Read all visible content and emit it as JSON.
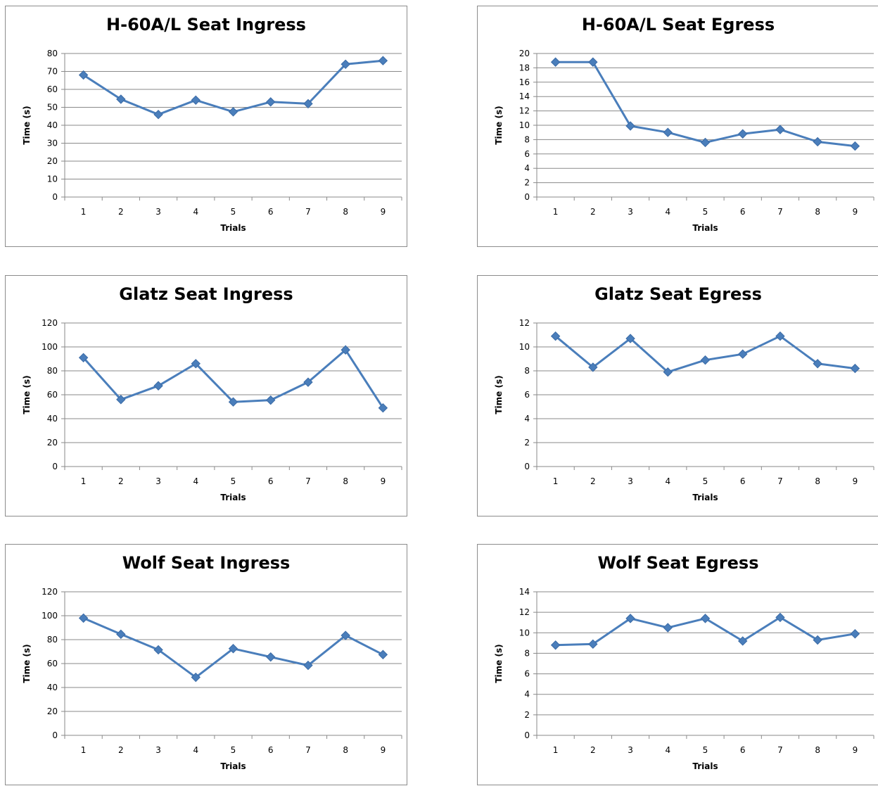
{
  "chart_data": [
    {
      "type": "line",
      "title": "H-60A/L Seat Ingress",
      "xlabel": "Trials",
      "ylabel": "Time (s)",
      "categories": [
        "1",
        "2",
        "3",
        "4",
        "5",
        "6",
        "7",
        "8",
        "9"
      ],
      "values": [
        68,
        54.5,
        46,
        54,
        47.5,
        53,
        52,
        74,
        76
      ],
      "ylim": [
        0,
        80
      ],
      "yticks": [
        0,
        10,
        20,
        30,
        40,
        50,
        60,
        70,
        80
      ],
      "color": "#4a7ebb",
      "grid": true
    },
    {
      "type": "line",
      "title": "H-60A/L Seat Egress",
      "xlabel": "Trials",
      "ylabel": "Time (s)",
      "categories": [
        "1",
        "2",
        "3",
        "4",
        "5",
        "6",
        "7",
        "8",
        "9"
      ],
      "values": [
        18.8,
        18.8,
        9.9,
        9,
        7.6,
        8.8,
        9.4,
        7.7,
        7.1
      ],
      "ylim": [
        0,
        20
      ],
      "yticks": [
        0,
        2,
        4,
        6,
        8,
        10,
        12,
        14,
        16,
        18,
        20
      ],
      "color": "#4a7ebb",
      "grid": true
    },
    {
      "type": "line",
      "title": "Glatz Seat Ingress",
      "xlabel": "Trials",
      "ylabel": "Time (s)",
      "categories": [
        "1",
        "2",
        "3",
        "4",
        "5",
        "6",
        "7",
        "8",
        "9"
      ],
      "values": [
        91,
        56,
        67.5,
        86,
        54,
        55.5,
        70.5,
        97.5,
        49
      ],
      "ylim": [
        0,
        120
      ],
      "yticks": [
        0,
        20,
        40,
        60,
        80,
        100,
        120
      ],
      "color": "#4a7ebb",
      "grid": true
    },
    {
      "type": "line",
      "title": "Glatz Seat Egress",
      "xlabel": "Trials",
      "ylabel": "Time (s)",
      "categories": [
        "1",
        "2",
        "3",
        "4",
        "5",
        "6",
        "7",
        "8",
        "9"
      ],
      "values": [
        10.9,
        8.3,
        10.7,
        7.9,
        8.9,
        9.4,
        10.9,
        8.6,
        8.2
      ],
      "ylim": [
        0,
        12
      ],
      "yticks": [
        0,
        2,
        4,
        6,
        8,
        10,
        12
      ],
      "color": "#4a7ebb",
      "grid": true
    },
    {
      "type": "line",
      "title": "Wolf Seat Ingress",
      "xlabel": "Trials",
      "ylabel": "Time (s)",
      "categories": [
        "1",
        "2",
        "3",
        "4",
        "5",
        "6",
        "7",
        "8",
        "9"
      ],
      "values": [
        98,
        84.5,
        71.5,
        48.5,
        72.5,
        65.5,
        58.5,
        83.5,
        67.5
      ],
      "ylim": [
        0,
        120
      ],
      "yticks": [
        0,
        20,
        40,
        60,
        80,
        100,
        120
      ],
      "color": "#4a7ebb",
      "grid": true
    },
    {
      "type": "line",
      "title": "Wolf Seat Egress",
      "xlabel": "Trials",
      "ylabel": "Time (s)",
      "categories": [
        "1",
        "2",
        "3",
        "4",
        "5",
        "6",
        "7",
        "8",
        "9"
      ],
      "values": [
        8.8,
        8.9,
        11.4,
        10.5,
        11.4,
        9.2,
        11.5,
        9.3,
        9.9
      ],
      "ylim": [
        0,
        14
      ],
      "yticks": [
        0,
        2,
        4,
        6,
        8,
        10,
        12,
        14
      ],
      "color": "#4a7ebb",
      "grid": true
    }
  ]
}
